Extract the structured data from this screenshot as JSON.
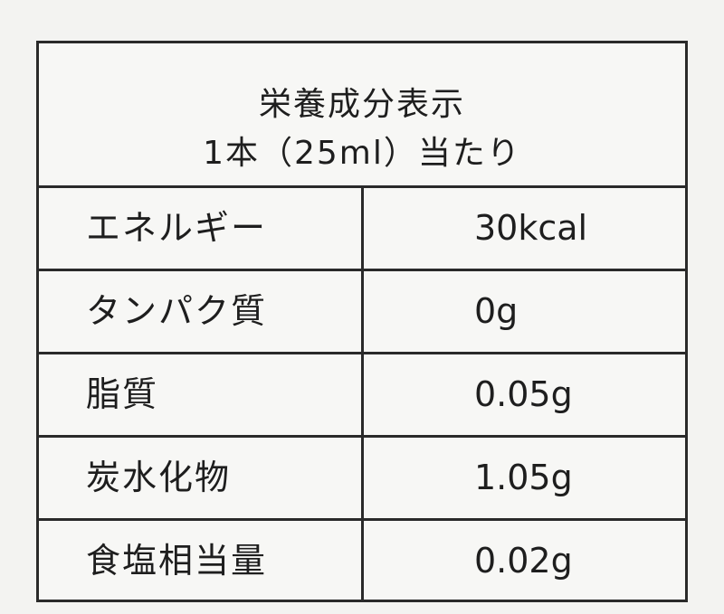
{
  "header": {
    "title": "栄養成分表示",
    "subtitle": "1本（25ml）当たり"
  },
  "table": {
    "rows": [
      [
        "エネルギー",
        "30kcal"
      ],
      [
        "タンパク質",
        "0g"
      ],
      [
        "脂質",
        "0.05g"
      ],
      [
        "炭水化物",
        "1.05g"
      ],
      [
        "食塩相当量",
        "0.02g"
      ]
    ]
  }
}
